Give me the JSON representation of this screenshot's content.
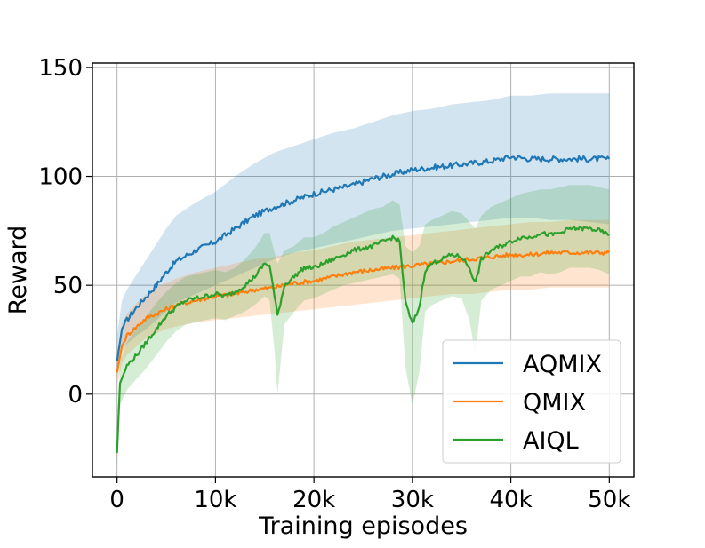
{
  "chart_data": {
    "type": "line",
    "title": "",
    "xlabel": "Training episodes",
    "ylabel": "Reward",
    "xlim": [
      -2500,
      52500
    ],
    "ylim": [
      -38,
      152
    ],
    "x_ticks": [
      0,
      10000,
      20000,
      30000,
      40000,
      50000
    ],
    "x_tick_labels": [
      "0",
      "10k",
      "20k",
      "30k",
      "40k",
      "50k"
    ],
    "y_ticks": [
      0,
      50,
      100,
      150
    ],
    "y_tick_labels": [
      "0",
      "50",
      "100",
      "150"
    ],
    "grid": true,
    "legend_position": "lower-right",
    "series": [
      {
        "name": "AQMIX",
        "color": "#1f77b4",
        "band_color": "#1f77b4",
        "x": [
          0,
          500,
          1000,
          2000,
          3000,
          4000,
          5000,
          6000,
          8000,
          10000,
          12000,
          14000,
          16000,
          18000,
          20000,
          22000,
          24000,
          26000,
          28000,
          30000,
          32000,
          34000,
          36000,
          38000,
          40000,
          42000,
          44000,
          46000,
          48000,
          50000
        ],
        "mean": [
          15,
          30,
          34,
          40,
          45,
          50,
          56,
          61,
          66,
          70,
          76,
          82,
          86,
          89,
          92,
          94,
          96,
          99,
          101,
          103,
          104,
          105,
          106,
          107,
          109,
          108,
          108,
          108,
          108,
          108
        ],
        "upper": [
          27,
          43,
          48,
          55,
          62,
          69,
          76,
          82,
          88,
          93,
          100,
          106,
          111,
          114,
          117,
          120,
          122,
          125,
          128,
          130,
          131,
          133,
          134,
          135,
          137,
          137,
          138,
          138,
          138,
          138
        ],
        "lower": [
          8,
          20,
          23,
          27,
          30,
          34,
          38,
          42,
          46,
          50,
          54,
          58,
          62,
          65,
          67,
          69,
          71,
          73,
          75,
          76,
          77,
          78,
          79,
          80,
          81,
          81,
          80,
          80,
          79,
          78
        ]
      },
      {
        "name": "QMIX",
        "color": "#ff7f0e",
        "band_color": "#ff7f0e",
        "x": [
          0,
          500,
          1000,
          2000,
          3000,
          4000,
          5000,
          6000,
          8000,
          10000,
          12000,
          14000,
          16000,
          18000,
          20000,
          22000,
          24000,
          26000,
          28000,
          30000,
          32000,
          34000,
          36000,
          38000,
          40000,
          42000,
          44000,
          46000,
          48000,
          50000
        ],
        "mean": [
          10,
          22,
          27,
          31,
          35,
          37,
          39,
          41,
          43,
          45,
          46,
          48,
          49,
          51,
          52,
          54,
          56,
          57,
          58,
          59,
          60,
          61,
          62,
          63,
          64,
          64,
          65,
          65,
          65,
          65
        ],
        "upper": [
          18,
          32,
          37,
          42,
          46,
          49,
          51,
          53,
          56,
          58,
          60,
          62,
          63,
          65,
          66,
          68,
          70,
          71,
          72,
          73,
          74,
          75,
          76,
          77,
          78,
          79,
          79,
          80,
          80,
          80
        ],
        "lower": [
          4,
          14,
          18,
          22,
          26,
          28,
          30,
          31,
          33,
          34,
          35,
          36,
          37,
          38,
          39,
          40,
          41,
          42,
          43,
          44,
          45,
          46,
          46,
          47,
          48,
          48,
          49,
          49,
          49,
          49
        ]
      },
      {
        "name": "AIQL",
        "color": "#2ca02c",
        "band_color": "#2ca02c",
        "x": [
          0,
          300,
          1000,
          2000,
          3000,
          4000,
          5000,
          6000,
          7000,
          8000,
          9000,
          10000,
          11000,
          12000,
          13000,
          14000,
          15000,
          15500,
          16000,
          16300,
          17000,
          18000,
          19000,
          20000,
          21000,
          22000,
          23000,
          24000,
          25000,
          26000,
          27000,
          28000,
          28700,
          29300,
          30000,
          30700,
          31300,
          32000,
          33000,
          34000,
          35000,
          35800,
          36400,
          37000,
          38000,
          39000,
          40000,
          41000,
          42000,
          43000,
          44000,
          45000,
          46000,
          47000,
          48000,
          49000,
          50000
        ],
        "mean": [
          -27,
          5,
          13,
          18,
          24,
          30,
          36,
          40,
          43,
          44,
          45,
          46,
          45,
          47,
          50,
          54,
          60,
          59,
          45,
          36,
          50,
          54,
          58,
          58,
          60,
          62,
          64,
          66,
          67,
          68,
          70,
          72,
          70,
          42,
          32,
          40,
          57,
          60,
          62,
          64,
          63,
          58,
          51,
          62,
          66,
          68,
          70,
          72,
          72,
          74,
          73,
          74,
          76,
          76,
          76,
          75,
          73
        ],
        "upper": [
          -20,
          15,
          24,
          30,
          36,
          42,
          47,
          51,
          54,
          55,
          56,
          57,
          56,
          58,
          62,
          67,
          74,
          74,
          65,
          60,
          66,
          68,
          72,
          72,
          74,
          77,
          79,
          81,
          83,
          85,
          86,
          89,
          87,
          68,
          65,
          68,
          78,
          80,
          82,
          84,
          83,
          79,
          76,
          82,
          86,
          88,
          90,
          92,
          93,
          94,
          94,
          95,
          96,
          96,
          96,
          95,
          94
        ],
        "lower": [
          -34,
          -5,
          2,
          7,
          12,
          18,
          24,
          29,
          32,
          33,
          34,
          35,
          34,
          36,
          38,
          41,
          45,
          43,
          20,
          0,
          32,
          38,
          43,
          44,
          46,
          48,
          50,
          51,
          52,
          53,
          54,
          55,
          53,
          12,
          -5,
          10,
          38,
          41,
          43,
          45,
          44,
          34,
          18,
          43,
          48,
          50,
          52,
          54,
          54,
          56,
          55,
          56,
          58,
          58,
          58,
          57,
          55
        ]
      }
    ]
  }
}
